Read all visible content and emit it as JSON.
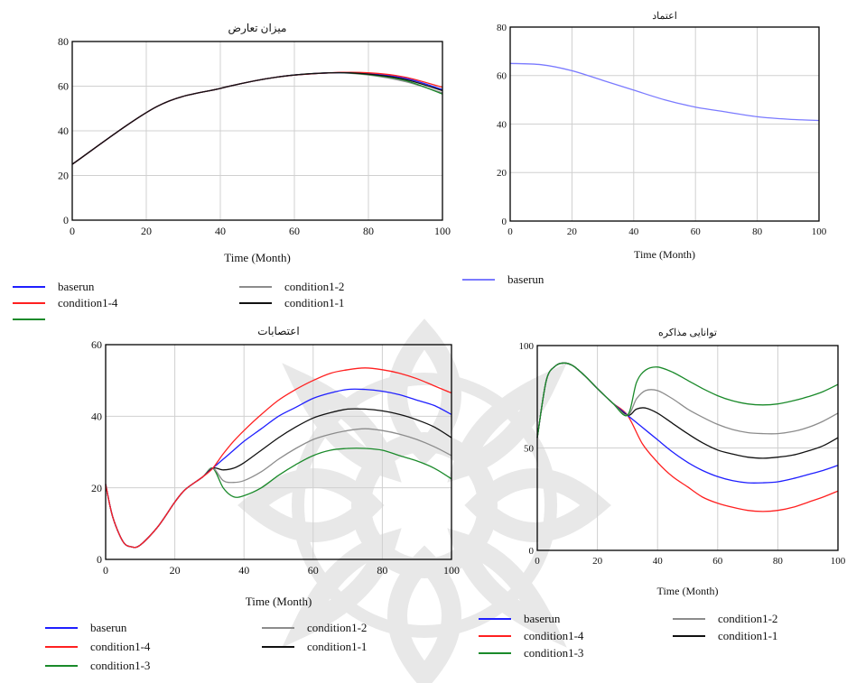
{
  "colors": {
    "baserun": "#1f1fff",
    "baserun_light": "#7a7aff",
    "condition1-4": "#ff2020",
    "condition1-3": "#1a8a2a",
    "condition1-2": "#8c8c8c",
    "condition1-1": "#111111",
    "grid": "#d0d0d0",
    "watermark": "#e6e6e6"
  },
  "watermark_icon": "arabesque-rosette-watermark",
  "chart_data": [
    {
      "id": "conflict",
      "type": "line",
      "title": "میزان تعارض",
      "xlabel": "Time (Month)",
      "ylabel": "",
      "xlim": [
        0,
        100
      ],
      "ylim": [
        0,
        80
      ],
      "xticks": [
        0,
        20,
        40,
        60,
        80,
        100
      ],
      "yticks": [
        0,
        20,
        40,
        60,
        80
      ],
      "grid": true,
      "legend": [
        "baserun",
        "condition1-4",
        "",
        "condition1-2",
        "condition1-1"
      ],
      "series": [
        {
          "name": "condition1-2",
          "color_key": "condition1-2",
          "x": [
            0,
            23,
            40,
            55,
            70,
            80,
            90,
            100
          ],
          "y": [
            25,
            51,
            59,
            64,
            66,
            65,
            62,
            57
          ]
        },
        {
          "name": "",
          "color_key": "condition1-3",
          "x": [
            0,
            23,
            40,
            55,
            70,
            80,
            90,
            100
          ],
          "y": [
            25,
            51,
            59,
            64,
            66,
            65.2,
            62.5,
            56.5
          ]
        },
        {
          "name": "baserun",
          "color_key": "baserun",
          "x": [
            0,
            23,
            40,
            55,
            70,
            80,
            90,
            100
          ],
          "y": [
            25,
            51,
            59,
            64,
            66,
            65.6,
            63.5,
            58.5
          ]
        },
        {
          "name": "condition1-4",
          "color_key": "condition1-4",
          "x": [
            0,
            23,
            40,
            55,
            70,
            80,
            90,
            100
          ],
          "y": [
            25,
            51,
            59,
            64,
            66,
            66,
            64,
            59.5
          ]
        },
        {
          "name": "condition1-1",
          "color_key": "condition1-1",
          "x": [
            0,
            23,
            40,
            55,
            70,
            80,
            90,
            100
          ],
          "y": [
            25,
            51,
            59,
            64,
            66,
            65.4,
            63,
            58
          ]
        }
      ]
    },
    {
      "id": "trust",
      "type": "line",
      "title": "اعتماد",
      "xlabel": "Time (Month)",
      "ylabel": "",
      "xlim": [
        0,
        100
      ],
      "ylim": [
        0,
        80
      ],
      "xticks": [
        0,
        20,
        40,
        60,
        80,
        100
      ],
      "yticks": [
        0,
        20,
        40,
        60,
        80
      ],
      "grid": true,
      "legend": [
        "baserun"
      ],
      "series": [
        {
          "name": "baserun",
          "color_key": "baserun_light",
          "x": [
            0,
            10,
            20,
            30,
            40,
            50,
            60,
            70,
            80,
            90,
            100
          ],
          "y": [
            65,
            64.5,
            62,
            58,
            54,
            50,
            47,
            45,
            43,
            42,
            41.5
          ]
        }
      ]
    },
    {
      "id": "strikes",
      "type": "line",
      "title": "اعتصابات",
      "xlabel": "Time (Month)",
      "ylabel": "",
      "xlim": [
        0,
        100
      ],
      "ylim": [
        0,
        60
      ],
      "xticks": [
        0,
        20,
        40,
        60,
        80,
        100
      ],
      "yticks": [
        0,
        20,
        40,
        60
      ],
      "grid": true,
      "legend": [
        "baserun",
        "condition1-4",
        "condition1-3",
        "condition1-2",
        "condition1-1"
      ],
      "series": [
        {
          "name": "condition1-3",
          "color_key": "condition1-3",
          "x": [
            0,
            2,
            5,
            7.5,
            10,
            15,
            20,
            23,
            28,
            31,
            34,
            37,
            40,
            45,
            50,
            55,
            60,
            65,
            70,
            75,
            80,
            85,
            90,
            95,
            100
          ],
          "y": [
            21,
            12,
            5,
            3.5,
            4,
            9,
            16,
            19.5,
            23,
            25.5,
            20,
            17.5,
            17.8,
            20,
            23.5,
            26.5,
            29,
            30.5,
            31,
            31,
            30.5,
            29,
            27.5,
            25.5,
            22.5
          ]
        },
        {
          "name": "condition1-2",
          "color_key": "condition1-2",
          "x": [
            0,
            2,
            5,
            7.5,
            10,
            15,
            20,
            23,
            28,
            31,
            34,
            37,
            40,
            45,
            50,
            55,
            60,
            65,
            70,
            75,
            80,
            85,
            90,
            95,
            100
          ],
          "y": [
            21,
            12,
            5,
            3.5,
            4,
            9,
            16,
            19.5,
            23,
            25.5,
            22,
            21.5,
            22,
            24.5,
            28,
            31,
            33.5,
            35,
            36,
            36.5,
            36,
            35,
            33.5,
            31.5,
            29
          ]
        },
        {
          "name": "condition1-1",
          "color_key": "condition1-1",
          "x": [
            0,
            2,
            5,
            7.5,
            10,
            15,
            20,
            23,
            28,
            31,
            34,
            37,
            40,
            45,
            50,
            55,
            60,
            65,
            70,
            75,
            80,
            85,
            90,
            95,
            100
          ],
          "y": [
            21,
            12,
            5,
            3.5,
            4,
            9,
            16,
            19.5,
            23,
            25.5,
            25,
            25.5,
            27,
            30.5,
            34,
            37,
            39.5,
            41,
            42,
            42,
            41.5,
            40.5,
            39,
            37,
            34
          ]
        },
        {
          "name": "baserun",
          "color_key": "baserun",
          "x": [
            0,
            2,
            5,
            7.5,
            10,
            15,
            20,
            23,
            28,
            31,
            34,
            37,
            40,
            45,
            50,
            55,
            60,
            65,
            70,
            75,
            80,
            85,
            90,
            95,
            100
          ],
          "y": [
            21,
            12,
            5,
            3.5,
            4,
            9,
            16,
            19.5,
            23,
            25.5,
            28,
            30.5,
            33,
            36.5,
            40,
            42.5,
            45,
            46.5,
            47.5,
            47.5,
            47,
            46,
            44.5,
            43,
            40.5
          ]
        },
        {
          "name": "condition1-4",
          "color_key": "condition1-4",
          "x": [
            0,
            2,
            5,
            7.5,
            10,
            15,
            20,
            23,
            28,
            31,
            34,
            37,
            40,
            45,
            50,
            55,
            60,
            65,
            70,
            75,
            80,
            85,
            90,
            95,
            100
          ],
          "y": [
            21,
            12,
            5,
            3.5,
            4,
            9,
            16,
            19.5,
            23,
            25.5,
            29.5,
            33,
            36,
            40.5,
            44.5,
            47.5,
            50,
            52,
            53,
            53.5,
            53,
            52,
            50.5,
            48.5,
            46.5
          ]
        }
      ]
    },
    {
      "id": "negotiation",
      "type": "line",
      "title": "توانایی مذاکره",
      "xlabel": "Time (Month)",
      "ylabel": "",
      "xlim": [
        0,
        100
      ],
      "ylim": [
        0,
        100
      ],
      "xticks": [
        0,
        20,
        40,
        60,
        80,
        100
      ],
      "yticks": [
        0,
        50,
        100
      ],
      "grid": true,
      "legend": [
        "baserun",
        "condition1-4",
        "condition1-3",
        "condition1-2",
        "condition1-1"
      ],
      "series": [
        {
          "name": "condition1-4",
          "color_key": "condition1-4",
          "x": [
            0,
            3,
            6,
            9,
            12,
            16,
            20,
            25,
            30,
            35,
            40,
            45,
            50,
            55,
            60,
            65,
            70,
            75,
            80,
            85,
            90,
            95,
            100
          ],
          "y": [
            55,
            83,
            90,
            91.5,
            90,
            85,
            79,
            72,
            66,
            52,
            43,
            36,
            31,
            26,
            23,
            21,
            19.5,
            19,
            19.5,
            21,
            23.5,
            26,
            29
          ]
        },
        {
          "name": "baserun",
          "color_key": "baserun",
          "x": [
            0,
            3,
            6,
            9,
            12,
            16,
            20,
            25,
            30,
            35,
            40,
            45,
            50,
            55,
            60,
            65,
            70,
            75,
            80,
            85,
            90,
            95,
            100
          ],
          "y": [
            55,
            83,
            90,
            91.5,
            90,
            85,
            79,
            72,
            66,
            60,
            54,
            48,
            43,
            39,
            36,
            34,
            33,
            33,
            33.5,
            35,
            37,
            39,
            41.5
          ]
        },
        {
          "name": "condition1-1",
          "color_key": "condition1-1",
          "x": [
            0,
            3,
            6,
            9,
            12,
            16,
            20,
            25,
            30,
            33,
            36,
            40,
            45,
            50,
            55,
            60,
            65,
            70,
            75,
            80,
            85,
            90,
            95,
            100
          ],
          "y": [
            55,
            83,
            90,
            91.5,
            90,
            85,
            79,
            72,
            66,
            69,
            69.5,
            67,
            62,
            57,
            52.5,
            49,
            47,
            45.5,
            45,
            45.5,
            46.5,
            48.5,
            51,
            55
          ]
        },
        {
          "name": "condition1-2",
          "color_key": "condition1-2",
          "x": [
            0,
            3,
            6,
            9,
            12,
            16,
            20,
            25,
            30,
            33,
            36,
            40,
            45,
            50,
            55,
            60,
            65,
            70,
            75,
            80,
            85,
            90,
            95,
            100
          ],
          "y": [
            55,
            83,
            90,
            91.5,
            90,
            85,
            79,
            72,
            66,
            74,
            78,
            78,
            74,
            69,
            65,
            61.5,
            59,
            57.5,
            57,
            57,
            58,
            60,
            63,
            67
          ]
        },
        {
          "name": "condition1-3",
          "color_key": "condition1-3",
          "x": [
            0,
            3,
            6,
            9,
            12,
            16,
            20,
            25,
            30,
            33,
            36,
            40,
            45,
            50,
            55,
            60,
            65,
            70,
            75,
            80,
            85,
            90,
            95,
            100
          ],
          "y": [
            55,
            83,
            90,
            91.5,
            90,
            85,
            79,
            72,
            66,
            82,
            88,
            89.5,
            87,
            83,
            79,
            75.5,
            73,
            71.5,
            71,
            71.5,
            73,
            75,
            77.5,
            81
          ]
        }
      ]
    }
  ],
  "legends": {
    "conflict": [
      {
        "label": "baserun",
        "color_key": "baserun"
      },
      {
        "label": "condition1-4",
        "color_key": "condition1-4"
      },
      {
        "label": "",
        "color_key": "condition1-3"
      },
      {
        "label": "condition1-2",
        "color_key": "condition1-2"
      },
      {
        "label": "condition1-1",
        "color_key": "condition1-1"
      }
    ],
    "trust": [
      {
        "label": "baserun",
        "color_key": "baserun_light"
      }
    ],
    "strikes": [
      {
        "label": "baserun",
        "color_key": "baserun"
      },
      {
        "label": "condition1-4",
        "color_key": "condition1-4"
      },
      {
        "label": "condition1-3",
        "color_key": "condition1-3"
      },
      {
        "label": "condition1-2",
        "color_key": "condition1-2"
      },
      {
        "label": "condition1-1",
        "color_key": "condition1-1"
      }
    ],
    "negotiation": [
      {
        "label": "baserun",
        "color_key": "baserun"
      },
      {
        "label": "condition1-4",
        "color_key": "condition1-4"
      },
      {
        "label": "condition1-3",
        "color_key": "condition1-3"
      },
      {
        "label": "condition1-2",
        "color_key": "condition1-2"
      },
      {
        "label": "condition1-1",
        "color_key": "condition1-1"
      }
    ]
  }
}
